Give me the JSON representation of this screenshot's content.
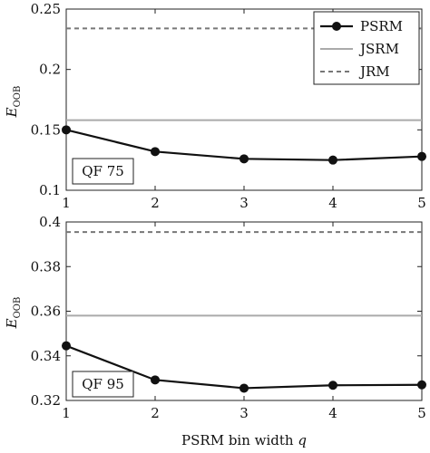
{
  "chart_data": [
    {
      "type": "line",
      "x": [
        1,
        2,
        3,
        4,
        5
      ],
      "xlim": [
        1,
        5
      ],
      "ylim": [
        0.1,
        0.25
      ],
      "yticks": [
        "0.1",
        "0.15",
        "0.2",
        "0.25"
      ],
      "xticks": [
        "1",
        "2",
        "3",
        "4",
        "5"
      ],
      "ylabel_main": "E",
      "ylabel_sub": "OOB",
      "annotation": "QF 75",
      "grid": false,
      "legend_position": "top-right",
      "series": [
        {
          "name": "PSRM",
          "style": "solid-marker",
          "color": "#111111",
          "values": [
            0.15,
            0.132,
            0.126,
            0.125,
            0.128
          ]
        },
        {
          "name": "JSRM",
          "style": "solid-horizontal",
          "color": "#aaaaaa",
          "value": 0.158
        },
        {
          "name": "JRM",
          "style": "dashed-horizontal",
          "color": "#777777",
          "value": 0.234
        }
      ]
    },
    {
      "type": "line",
      "x": [
        1,
        2,
        3,
        4,
        5
      ],
      "xlim": [
        1,
        5
      ],
      "ylim": [
        0.32,
        0.4
      ],
      "yticks": [
        "0.32",
        "0.34",
        "0.36",
        "0.38",
        "0.4"
      ],
      "xticks": [
        "1",
        "2",
        "3",
        "4",
        "5"
      ],
      "ylabel_main": "E",
      "ylabel_sub": "OOB",
      "xlabel_main": "PSRM bin width ",
      "xlabel_var": "q",
      "annotation": "QF 95",
      "grid": false,
      "series": [
        {
          "name": "PSRM",
          "style": "solid-marker",
          "color": "#111111",
          "values": [
            0.3445,
            0.3292,
            0.3255,
            0.3268,
            0.327
          ]
        },
        {
          "name": "JSRM",
          "style": "solid-horizontal",
          "color": "#aaaaaa",
          "value": 0.358
        },
        {
          "name": "JRM",
          "style": "dashed-horizontal",
          "color": "#777777",
          "value": 0.3955
        }
      ]
    }
  ]
}
